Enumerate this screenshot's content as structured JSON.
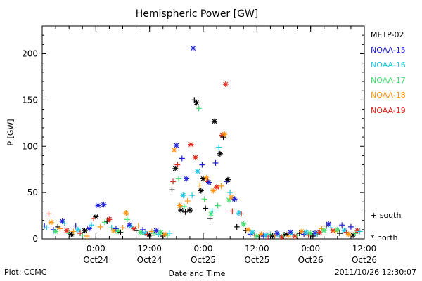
{
  "chart_data": {
    "type": "scatter",
    "title": "Hemispheric Power [GW]",
    "xlabel": "Date and Time",
    "ylabel": "P [GW]",
    "ylim": [
      0,
      230
    ],
    "y_ticks": [
      0,
      50,
      100,
      150,
      200
    ],
    "x_range_hours": [
      0,
      144
    ],
    "x_ticks": [
      {
        "hour": 24,
        "top": "0:00",
        "bottom": "Oct24"
      },
      {
        "hour": 48,
        "top": "12:00",
        "bottom": "Oct24"
      },
      {
        "hour": 72,
        "top": "0:00",
        "bottom": "Oct25"
      },
      {
        "hour": 96,
        "top": "12:00",
        "bottom": "Oct25"
      },
      {
        "hour": 120,
        "top": "0:00",
        "bottom": "Oct26"
      },
      {
        "hour": 144,
        "top": "12:00",
        "bottom": "Oct26"
      }
    ],
    "series": [
      {
        "name": "METP-02",
        "color": "#000000"
      },
      {
        "name": "NOAA-15",
        "color": "#2020d8"
      },
      {
        "name": "NOAA-16",
        "color": "#20c8e8"
      },
      {
        "name": "NOAA-17",
        "color": "#40e070"
      },
      {
        "name": "NOAA-18",
        "color": "#ff9410"
      },
      {
        "name": "NOAA-19",
        "color": "#e02818"
      }
    ],
    "points": [
      {
        "s": 1,
        "h": 1,
        "y": 14,
        "m": "plus"
      },
      {
        "s": 2,
        "h": 2,
        "y": 12,
        "m": "plus"
      },
      {
        "s": 5,
        "h": 3,
        "y": 27,
        "m": "plus"
      },
      {
        "s": 4,
        "h": 4,
        "y": 18,
        "m": "star"
      },
      {
        "s": 1,
        "h": 5,
        "y": 10,
        "m": "plus"
      },
      {
        "s": 3,
        "h": 6,
        "y": 8,
        "m": "star"
      },
      {
        "s": 0,
        "h": 7,
        "y": 13,
        "m": "plus"
      },
      {
        "s": 4,
        "h": 8,
        "y": 11,
        "m": "plus"
      },
      {
        "s": 1,
        "h": 9,
        "y": 19,
        "m": "star"
      },
      {
        "s": 2,
        "h": 10,
        "y": 17,
        "m": "plus"
      },
      {
        "s": 5,
        "h": 11,
        "y": 9,
        "m": "star"
      },
      {
        "s": 3,
        "h": 12,
        "y": 6,
        "m": "plus"
      },
      {
        "s": 0,
        "h": 13,
        "y": 5,
        "m": "star"
      },
      {
        "s": 4,
        "h": 14,
        "y": 8,
        "m": "plus"
      },
      {
        "s": 1,
        "h": 15,
        "y": 14,
        "m": "plus"
      },
      {
        "s": 2,
        "h": 16,
        "y": 10,
        "m": "star"
      },
      {
        "s": 5,
        "h": 17,
        "y": 6,
        "m": "plus"
      },
      {
        "s": 3,
        "h": 18,
        "y": 4,
        "m": "plus"
      },
      {
        "s": 0,
        "h": 19,
        "y": 9,
        "m": "star"
      },
      {
        "s": 4,
        "h": 20,
        "y": 3,
        "m": "plus"
      },
      {
        "s": 1,
        "h": 21,
        "y": 11,
        "m": "star"
      },
      {
        "s": 2,
        "h": 22,
        "y": 15,
        "m": "plus"
      },
      {
        "s": 5,
        "h": 23,
        "y": 22,
        "m": "plus"
      },
      {
        "s": 0,
        "h": 24,
        "y": 24,
        "m": "star"
      },
      {
        "s": 1,
        "h": 25,
        "y": 36,
        "m": "star"
      },
      {
        "s": 4,
        "h": 26,
        "y": 13,
        "m": "plus"
      },
      {
        "s": 1,
        "h": 27.5,
        "y": 37,
        "m": "star"
      },
      {
        "s": 3,
        "h": 28,
        "y": 18,
        "m": "plus"
      },
      {
        "s": 0,
        "h": 29,
        "y": 19,
        "m": "plus"
      },
      {
        "s": 5,
        "h": 30,
        "y": 21,
        "m": "star"
      },
      {
        "s": 2,
        "h": 31,
        "y": 12,
        "m": "plus"
      },
      {
        "s": 4,
        "h": 32,
        "y": 9,
        "m": "star"
      },
      {
        "s": 1,
        "h": 33,
        "y": 11,
        "m": "plus"
      },
      {
        "s": 3,
        "h": 34,
        "y": 8,
        "m": "star"
      },
      {
        "s": 0,
        "h": 35,
        "y": 7,
        "m": "plus"
      },
      {
        "s": 4,
        "h": 36,
        "y": 12,
        "m": "plus"
      },
      {
        "s": 4,
        "h": 37.5,
        "y": 28,
        "m": "star"
      },
      {
        "s": 3,
        "h": 38,
        "y": 21,
        "m": "plus"
      },
      {
        "s": 1,
        "h": 39,
        "y": 15,
        "m": "star"
      },
      {
        "s": 2,
        "h": 40,
        "y": 13,
        "m": "plus"
      },
      {
        "s": 5,
        "h": 41,
        "y": 11,
        "m": "star"
      },
      {
        "s": 0,
        "h": 42,
        "y": 9,
        "m": "plus"
      },
      {
        "s": 4,
        "h": 43,
        "y": 14,
        "m": "plus"
      },
      {
        "s": 3,
        "h": 44,
        "y": 7,
        "m": "star"
      },
      {
        "s": 1,
        "h": 45,
        "y": 10,
        "m": "plus"
      },
      {
        "s": 2,
        "h": 46,
        "y": 6,
        "m": "star"
      },
      {
        "s": 5,
        "h": 47,
        "y": 5,
        "m": "plus"
      },
      {
        "s": 0,
        "h": 48,
        "y": 4,
        "m": "star"
      },
      {
        "s": 4,
        "h": 49,
        "y": 8,
        "m": "plus"
      },
      {
        "s": 3,
        "h": 50,
        "y": 6,
        "m": "plus"
      },
      {
        "s": 1,
        "h": 51,
        "y": 9,
        "m": "star"
      },
      {
        "s": 2,
        "h": 52,
        "y": 5,
        "m": "plus"
      },
      {
        "s": 3,
        "h": 53,
        "y": 7,
        "m": "star"
      },
      {
        "s": 0,
        "h": 54,
        "y": 3,
        "m": "plus"
      },
      {
        "s": 4,
        "h": 55,
        "y": 5,
        "m": "star"
      },
      {
        "s": 3,
        "h": 56,
        "y": 4,
        "m": "plus"
      },
      {
        "s": 2,
        "h": 57,
        "y": 6,
        "m": "plus"
      },
      {
        "s": 0,
        "h": 58,
        "y": 53,
        "m": "plus"
      },
      {
        "s": 5,
        "h": 58.5,
        "y": 62,
        "m": "plus"
      },
      {
        "s": 4,
        "h": 59,
        "y": 96,
        "m": "star"
      },
      {
        "s": 0,
        "h": 59.5,
        "y": 76,
        "m": "star"
      },
      {
        "s": 1,
        "h": 60,
        "y": 101,
        "m": "star"
      },
      {
        "s": 5,
        "h": 60.5,
        "y": 80,
        "m": "plus"
      },
      {
        "s": 3,
        "h": 61,
        "y": 65,
        "m": "plus"
      },
      {
        "s": 4,
        "h": 61.5,
        "y": 36,
        "m": "star"
      },
      {
        "s": 0,
        "h": 62,
        "y": 31,
        "m": "star"
      },
      {
        "s": 1,
        "h": 62.5,
        "y": 87,
        "m": "plus"
      },
      {
        "s": 2,
        "h": 63,
        "y": 47,
        "m": "star"
      },
      {
        "s": 3,
        "h": 63.5,
        "y": 35,
        "m": "plus"
      },
      {
        "s": 0,
        "h": 64,
        "y": 29,
        "m": "plus"
      },
      {
        "s": 1,
        "h": 64.5,
        "y": 65,
        "m": "star"
      },
      {
        "s": 4,
        "h": 65,
        "y": 41,
        "m": "plus"
      },
      {
        "s": 0,
        "h": 66,
        "y": 31,
        "m": "star"
      },
      {
        "s": 5,
        "h": 66.5,
        "y": 102,
        "m": "star"
      },
      {
        "s": 2,
        "h": 67,
        "y": 47,
        "m": "plus"
      },
      {
        "s": 1,
        "h": 67.5,
        "y": 206,
        "m": "star"
      },
      {
        "s": 0,
        "h": 68,
        "y": 150,
        "m": "plus"
      },
      {
        "s": 0,
        "h": 69,
        "y": 147,
        "m": "star"
      },
      {
        "s": 3,
        "h": 70,
        "y": 141,
        "m": "plus"
      },
      {
        "s": 5,
        "h": 68.5,
        "y": 88,
        "m": "star"
      },
      {
        "s": 2,
        "h": 69.5,
        "y": 73,
        "m": "star"
      },
      {
        "s": 4,
        "h": 70.5,
        "y": 58,
        "m": "plus"
      },
      {
        "s": 0,
        "h": 71,
        "y": 52,
        "m": "star"
      },
      {
        "s": 1,
        "h": 71.5,
        "y": 80,
        "m": "plus"
      },
      {
        "s": 0,
        "h": 72,
        "y": 65,
        "m": "star"
      },
      {
        "s": 3,
        "h": 72.5,
        "y": 43,
        "m": "plus"
      },
      {
        "s": 0,
        "h": 73,
        "y": 33,
        "m": "plus"
      },
      {
        "s": 4,
        "h": 73.5,
        "y": 66,
        "m": "star"
      },
      {
        "s": 5,
        "h": 74,
        "y": 62,
        "m": "plus"
      },
      {
        "s": 1,
        "h": 74.5,
        "y": 61,
        "m": "star"
      },
      {
        "s": 0,
        "h": 75,
        "y": 22,
        "m": "plus"
      },
      {
        "s": 3,
        "h": 75.5,
        "y": 27,
        "m": "star"
      },
      {
        "s": 2,
        "h": 76,
        "y": 30,
        "m": "plus"
      },
      {
        "s": 4,
        "h": 76.5,
        "y": 52,
        "m": "star"
      },
      {
        "s": 0,
        "h": 77,
        "y": 127,
        "m": "star"
      },
      {
        "s": 1,
        "h": 77.5,
        "y": 82,
        "m": "plus"
      },
      {
        "s": 5,
        "h": 78,
        "y": 56,
        "m": "star"
      },
      {
        "s": 3,
        "h": 78.5,
        "y": 36,
        "m": "plus"
      },
      {
        "s": 2,
        "h": 79,
        "y": 99,
        "m": "plus"
      },
      {
        "s": 0,
        "h": 79.5,
        "y": 92,
        "m": "star"
      },
      {
        "s": 4,
        "h": 80,
        "y": 57,
        "m": "plus"
      },
      {
        "s": 5,
        "h": 80.5,
        "y": 112,
        "m": "star"
      },
      {
        "s": 0,
        "h": 81,
        "y": 110,
        "m": "plus"
      },
      {
        "s": 4,
        "h": 81.5,
        "y": 113,
        "m": "star"
      },
      {
        "s": 5,
        "h": 82,
        "y": 167,
        "m": "star"
      },
      {
        "s": 1,
        "h": 82.5,
        "y": 62,
        "m": "plus"
      },
      {
        "s": 0,
        "h": 83,
        "y": 64,
        "m": "star"
      },
      {
        "s": 3,
        "h": 83.5,
        "y": 42,
        "m": "star"
      },
      {
        "s": 2,
        "h": 84,
        "y": 50,
        "m": "plus"
      },
      {
        "s": 4,
        "h": 84.5,
        "y": 45,
        "m": "star"
      },
      {
        "s": 5,
        "h": 85,
        "y": 30,
        "m": "plus"
      },
      {
        "s": 1,
        "h": 86,
        "y": 43,
        "m": "star"
      },
      {
        "s": 0,
        "h": 87,
        "y": 13,
        "m": "plus"
      },
      {
        "s": 2,
        "h": 88,
        "y": 28,
        "m": "star"
      },
      {
        "s": 5,
        "h": 89,
        "y": 27,
        "m": "plus"
      },
      {
        "s": 3,
        "h": 90,
        "y": 16,
        "m": "star"
      },
      {
        "s": 0,
        "h": 91,
        "y": 9,
        "m": "plus"
      },
      {
        "s": 4,
        "h": 92,
        "y": 10,
        "m": "star"
      },
      {
        "s": 1,
        "h": 93,
        "y": 5,
        "m": "plus"
      },
      {
        "s": 2,
        "h": 94,
        "y": 7,
        "m": "star"
      },
      {
        "s": 5,
        "h": 95,
        "y": 4,
        "m": "plus"
      },
      {
        "s": 3,
        "h": 96,
        "y": 3,
        "m": "star"
      },
      {
        "s": 0,
        "h": 97,
        "y": 2,
        "m": "plus"
      },
      {
        "s": 4,
        "h": 98,
        "y": 5,
        "m": "star"
      },
      {
        "s": 1,
        "h": 99,
        "y": 3,
        "m": "plus"
      },
      {
        "s": 2,
        "h": 100,
        "y": 4,
        "m": "star"
      },
      {
        "s": 5,
        "h": 101,
        "y": 2,
        "m": "plus"
      },
      {
        "s": 3,
        "h": 102,
        "y": 5,
        "m": "plus"
      },
      {
        "s": 0,
        "h": 103,
        "y": 3,
        "m": "star"
      },
      {
        "s": 4,
        "h": 104,
        "y": 4,
        "m": "plus"
      },
      {
        "s": 1,
        "h": 105,
        "y": 6,
        "m": "star"
      },
      {
        "s": 2,
        "h": 106,
        "y": 3,
        "m": "plus"
      },
      {
        "s": 5,
        "h": 107,
        "y": 2,
        "m": "star"
      },
      {
        "s": 3,
        "h": 108,
        "y": 4,
        "m": "plus"
      },
      {
        "s": 0,
        "h": 109,
        "y": 5,
        "m": "star"
      },
      {
        "s": 4,
        "h": 110,
        "y": 3,
        "m": "plus"
      },
      {
        "s": 1,
        "h": 111,
        "y": 7,
        "m": "star"
      },
      {
        "s": 2,
        "h": 112,
        "y": 5,
        "m": "plus"
      },
      {
        "s": 5,
        "h": 113,
        "y": 3,
        "m": "star"
      },
      {
        "s": 3,
        "h": 114,
        "y": 4,
        "m": "plus"
      },
      {
        "s": 0,
        "h": 115,
        "y": 6,
        "m": "plus"
      },
      {
        "s": 4,
        "h": 116,
        "y": 8,
        "m": "star"
      },
      {
        "s": 1,
        "h": 117,
        "y": 5,
        "m": "plus"
      },
      {
        "s": 2,
        "h": 118,
        "y": 7,
        "m": "star"
      },
      {
        "s": 5,
        "h": 119,
        "y": 4,
        "m": "plus"
      },
      {
        "s": 3,
        "h": 120,
        "y": 6,
        "m": "star"
      },
      {
        "s": 0,
        "h": 121,
        "y": 3,
        "m": "plus"
      },
      {
        "s": 1,
        "h": 122,
        "y": 6,
        "m": "star"
      },
      {
        "s": 2,
        "h": 123,
        "y": 5,
        "m": "plus"
      },
      {
        "s": 5,
        "h": 124,
        "y": 7,
        "m": "star"
      },
      {
        "s": 4,
        "h": 125,
        "y": 11,
        "m": "plus"
      },
      {
        "s": 3,
        "h": 126,
        "y": 9,
        "m": "star"
      },
      {
        "s": 0,
        "h": 127,
        "y": 14,
        "m": "plus"
      },
      {
        "s": 1,
        "h": 128,
        "y": 16,
        "m": "star"
      },
      {
        "s": 2,
        "h": 129,
        "y": 12,
        "m": "plus"
      },
      {
        "s": 5,
        "h": 130,
        "y": 9,
        "m": "star"
      },
      {
        "s": 4,
        "h": 131,
        "y": 8,
        "m": "plus"
      },
      {
        "s": 3,
        "h": 132,
        "y": 10,
        "m": "star"
      },
      {
        "s": 0,
        "h": 133,
        "y": 6,
        "m": "plus"
      },
      {
        "s": 1,
        "h": 134,
        "y": 15,
        "m": "plus"
      },
      {
        "s": 2,
        "h": 135,
        "y": 9,
        "m": "star"
      },
      {
        "s": 5,
        "h": 136,
        "y": 7,
        "m": "plus"
      },
      {
        "s": 4,
        "h": 137,
        "y": 5,
        "m": "star"
      },
      {
        "s": 1,
        "h": 138,
        "y": 13,
        "m": "plus"
      },
      {
        "s": 0,
        "h": 139,
        "y": 4,
        "m": "star"
      },
      {
        "s": 3,
        "h": 140,
        "y": 6,
        "m": "plus"
      },
      {
        "s": 5,
        "h": 141,
        "y": 9,
        "m": "star"
      },
      {
        "s": 2,
        "h": 142,
        "y": 8,
        "m": "plus"
      }
    ]
  },
  "marker_key": {
    "plus": "+ south",
    "star": "* north"
  },
  "footer": {
    "left": "Plot: CCMC",
    "right": "2011/10/26 12:30:07"
  }
}
